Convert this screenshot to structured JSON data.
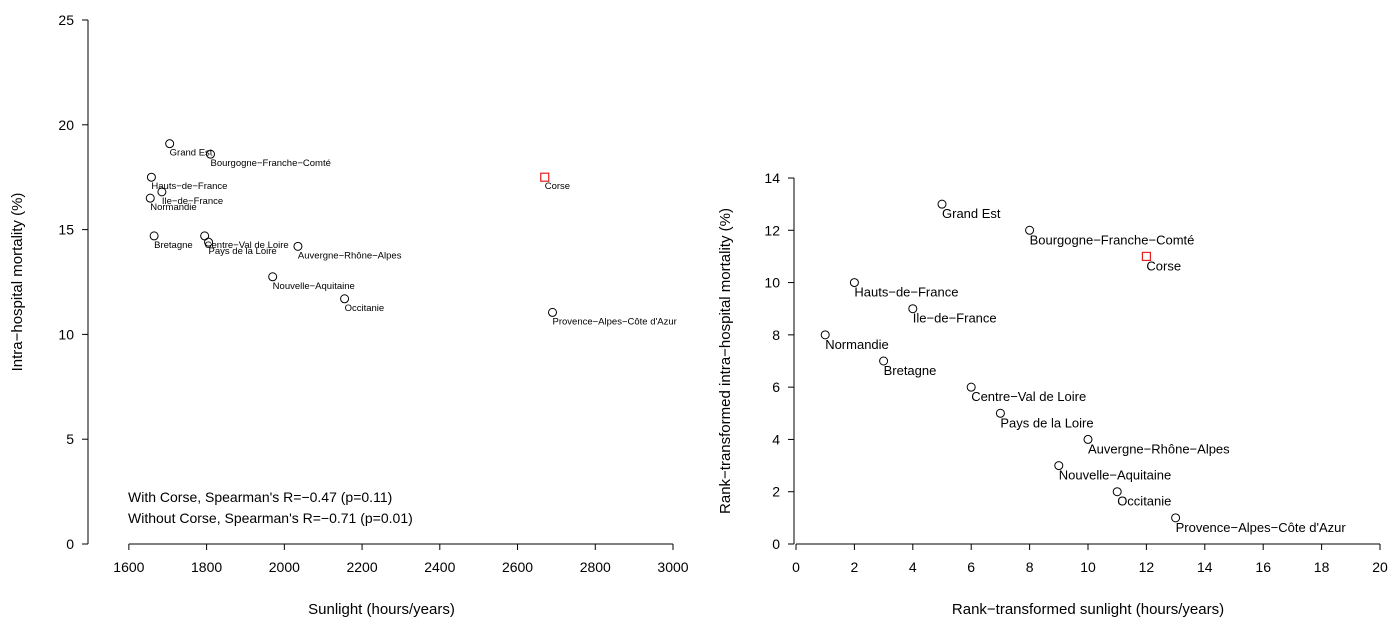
{
  "colors": {
    "highlight": "#e8201f",
    "default": "#000000"
  },
  "chart_data": [
    {
      "type": "scatter",
      "xlabel": "Sunlight (hours/years)",
      "ylabel": "Intra−hospital mortality (%)",
      "xlim": [
        1500,
        3000
      ],
      "ylim": [
        0,
        25
      ],
      "xticks": [
        "1600",
        "1800",
        "2000",
        "2200",
        "2400",
        "2600",
        "2800",
        "3000"
      ],
      "yticks": [
        "0",
        "5",
        "10",
        "15",
        "20",
        "25"
      ],
      "annotations": [
        "With Corse, Spearman's R=−0.47 (p=0.11)",
        "Without Corse, Spearman's R=−0.71 (p=0.01)"
      ],
      "points": [
        {
          "label": "Grand Est",
          "x": 1705,
          "y": 19.1,
          "highlight": false
        },
        {
          "label": "Bourgogne−Franche−Comté",
          "x": 1810,
          "y": 18.6,
          "highlight": false
        },
        {
          "label": "Hauts−de−France",
          "x": 1658,
          "y": 17.5,
          "highlight": false
        },
        {
          "label": "Ile−de−France",
          "x": 1685,
          "y": 16.8,
          "highlight": false
        },
        {
          "label": "Normandie",
          "x": 1655,
          "y": 16.5,
          "highlight": false
        },
        {
          "label": "Bretagne",
          "x": 1665,
          "y": 14.7,
          "highlight": false
        },
        {
          "label": "Centre−Val de Loire",
          "x": 1795,
          "y": 14.7,
          "highlight": false
        },
        {
          "label": "Pays de la Loire",
          "x": 1805,
          "y": 14.4,
          "highlight": false
        },
        {
          "label": "Auvergne−Rhône−Alpes",
          "x": 2035,
          "y": 14.2,
          "highlight": false
        },
        {
          "label": "Nouvelle−Aquitaine",
          "x": 1970,
          "y": 12.75,
          "highlight": false
        },
        {
          "label": "Occitanie",
          "x": 2155,
          "y": 11.7,
          "highlight": false
        },
        {
          "label": "Provence−Alpes−Côte d'Azur",
          "x": 2690,
          "y": 11.05,
          "highlight": false
        },
        {
          "label": "Corse",
          "x": 2670,
          "y": 17.5,
          "highlight": true
        }
      ]
    },
    {
      "type": "scatter",
      "xlabel": "Rank−transformed sunlight (hours/years)",
      "ylabel": "Rank−transformed intra−hospital mortality (%)",
      "xlim": [
        0,
        20
      ],
      "ylim": [
        0,
        14
      ],
      "xticks": [
        "0",
        "2",
        "4",
        "6",
        "8",
        "10",
        "12",
        "14",
        "16",
        "18",
        "20"
      ],
      "yticks": [
        "0",
        "2",
        "4",
        "6",
        "8",
        "10",
        "12",
        "14"
      ],
      "points": [
        {
          "label": "Grand Est",
          "x": 5,
          "y": 13,
          "highlight": false
        },
        {
          "label": "Bourgogne−Franche−Comté",
          "x": 8,
          "y": 12,
          "highlight": false
        },
        {
          "label": "Corse",
          "x": 12,
          "y": 11,
          "highlight": true
        },
        {
          "label": "Hauts−de−France",
          "x": 2,
          "y": 10,
          "highlight": false
        },
        {
          "label": "Ile−de−France",
          "x": 4,
          "y": 9,
          "highlight": false
        },
        {
          "label": "Normandie",
          "x": 1,
          "y": 8,
          "highlight": false
        },
        {
          "label": "Bretagne",
          "x": 3,
          "y": 7,
          "highlight": false
        },
        {
          "label": "Centre−Val de Loire",
          "x": 6,
          "y": 6,
          "highlight": false
        },
        {
          "label": "Pays de la Loire",
          "x": 7,
          "y": 5,
          "highlight": false
        },
        {
          "label": "Auvergne−Rhône−Alpes",
          "x": 10,
          "y": 4,
          "highlight": false
        },
        {
          "label": "Nouvelle−Aquitaine",
          "x": 9,
          "y": 3,
          "highlight": false
        },
        {
          "label": "Occitanie",
          "x": 11,
          "y": 2,
          "highlight": false
        },
        {
          "label": "Provence−Alpes−Côte d'Azur",
          "x": 13,
          "y": 1,
          "highlight": false
        }
      ]
    }
  ]
}
